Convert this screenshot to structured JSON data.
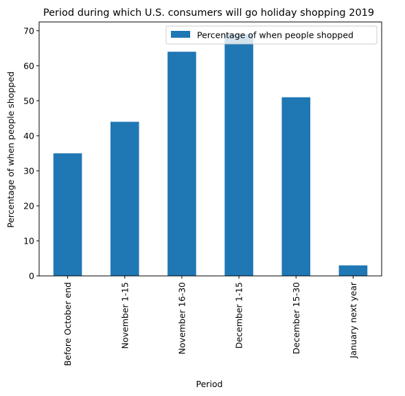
{
  "chart_data": {
    "type": "bar",
    "title": "Period during which U.S. consumers will go holiday shopping 2019",
    "xlabel": "Period",
    "ylabel": "Percentage of when people shopped",
    "categories": [
      "Before October end",
      "November 1-15",
      "November 16-30",
      "December  1-15",
      "December 15-30",
      "January next year"
    ],
    "series": [
      {
        "name": "Percentage of when people shopped",
        "values": [
          35,
          44,
          64,
          69,
          51,
          3
        ],
        "color": "#1f77b4"
      }
    ],
    "ylim": [
      0,
      72.5
    ],
    "yticks": [
      0,
      10,
      20,
      30,
      40,
      50,
      60,
      70
    ],
    "grid": false,
    "legend_position": "top-right"
  }
}
